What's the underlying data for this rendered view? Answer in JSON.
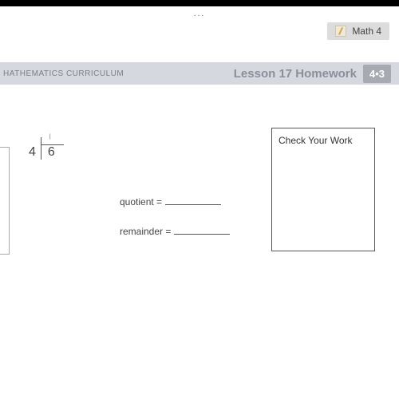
{
  "topbar": {
    "ellipsis": "..."
  },
  "badge": {
    "label": "Math 4"
  },
  "header": {
    "curriculum": "HATHEMATICS CURRICULUM",
    "lesson_title": "Lesson 17 Homework",
    "code": "4•3"
  },
  "problem": {
    "divisor": "4",
    "dividend": "6",
    "top_mark": "|"
  },
  "labels": {
    "quotient": "quotient =",
    "remainder": "remainder ="
  },
  "checkbox": {
    "title": "Check Your Work"
  }
}
